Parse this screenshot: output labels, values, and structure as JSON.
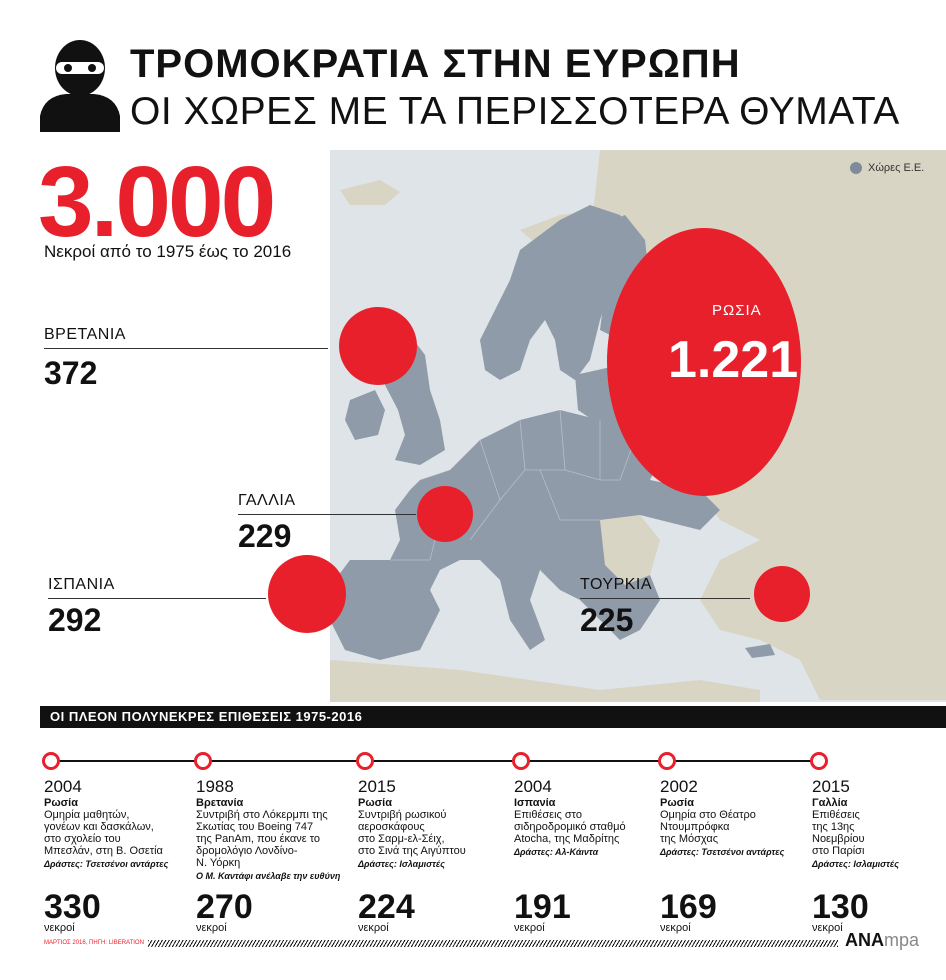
{
  "header": {
    "title": "ΤΡΟΜΟΚΡΑΤΙΑ ΣΤΗΝ ΕΥΡΩΠΗ",
    "subtitle": "ΟΙ ΧΩΡΕΣ ΜΕ ΤΑ ΠΕΡΙΣΣΟΤΕΡΑ ΘΥΜΑΤΑ",
    "icon": "masked-person-icon"
  },
  "headline": {
    "value": "3.000",
    "caption": "Νεκροί από το 1975 έως το 2016"
  },
  "legend": {
    "label": "Χώρες Ε.Ε.",
    "color": "#7e8b98"
  },
  "colors": {
    "accent": "#e8202b",
    "eu_land": "#8f9ba8",
    "other_land": "#d9d5c4",
    "sea": "#dfe4e8"
  },
  "countries": {
    "britain": {
      "label": "ΒΡΕΤΑΝΙΑ",
      "value": "372"
    },
    "france": {
      "label": "ΓΑΛΛΙΑ",
      "value": "229"
    },
    "spain": {
      "label": "ΙΣΠΑΝΙΑ",
      "value": "292"
    },
    "turkey": {
      "label": "ΤΟΥΡΚΙΑ",
      "value": "225"
    },
    "russia": {
      "label": "ΡΩΣΙΑ",
      "value": "1.221"
    }
  },
  "section_title": "ΟΙ ΠΛΕΟΝ ΠΟΛΥΝΕΚΡΕΣ ΕΠΙΘΕΣΕΙΣ 1975-2016",
  "attacks": [
    {
      "year": "2004",
      "country": "Ρωσία",
      "desc": [
        "Ομηρία μαθητών,",
        "γονέων και δασκάλων,",
        "στο σχολείο του",
        "Μπεσλάν, στη Β. Οσετία"
      ],
      "perp": "Δράστες: Τσετσένοι αντάρτες",
      "count": "330",
      "unit": "νεκροί"
    },
    {
      "year": "1988",
      "country": "Βρετανία",
      "desc": [
        "Συντριβή στο Λόκερμπι της",
        "Σκωτίας  του Boeing 747",
        "της  PanAm, που έκανε το",
        "δρομολόγιο Λονδίνο-",
        "Ν. Υόρκη"
      ],
      "perp": "Ο Μ. Καντάφι ανέλαβε την ευθύνη",
      "count": "270",
      "unit": "νεκροί"
    },
    {
      "year": "2015",
      "country": "Ρωσία",
      "desc": [
        "Συντριβή ρωσικού",
        "αεροσκάφους",
        "στο Σαρμ-ελ-Σέιχ,",
        "στο Σινά της Αιγύπτου"
      ],
      "perp": "Δράστες: Ισλαμιστές",
      "count": "224",
      "unit": "νεκροί"
    },
    {
      "year": "2004",
      "country": "Ισπανία",
      "desc": [
        "Επιθέσεις στο",
        "σιδηροδρομικό σταθμό",
        "Atocha, της Μαδρίτης"
      ],
      "perp": "Δράστες: Αλ-Κάιντα",
      "count": "191",
      "unit": "νεκροί"
    },
    {
      "year": "2002",
      "country": "Ρωσία",
      "desc": [
        "Ομηρία στο Θέατρο",
        "Ντουμπρόφκα",
        "της Μόσχας"
      ],
      "perp": "Δράστες: Τσετσένοι αντάρτες",
      "count": "169",
      "unit": "νεκροί"
    },
    {
      "year": "2015",
      "country": "Γαλλία",
      "desc": [
        "Επιθέσεις",
        "της 13ης",
        "Νοεμβρίου",
        "στο Παρίσι"
      ],
      "perp": "Δράστες: Ισλαμιστές",
      "count": "130",
      "unit": "νεκροί"
    }
  ],
  "footer": {
    "source": "ΜΑΡΤΙΟΣ 2016, ΠΗΓΗ: LIBERATION",
    "logo_a": "ΑΝΑ",
    "logo_b": "mpa"
  }
}
